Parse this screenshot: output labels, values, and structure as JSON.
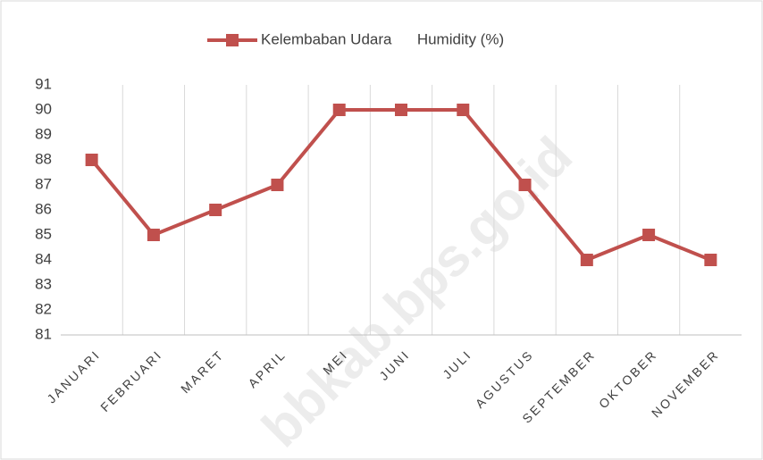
{
  "chart_data": {
    "type": "line",
    "categories": [
      "JANUARI",
      "FEBRUARI",
      "MARET",
      "APRIL",
      "MEI",
      "JUNI",
      "JULI",
      "AGUSTUS",
      "SEPTEMBER",
      "OKTOBER",
      "NOVEMBER"
    ],
    "series": [
      {
        "name": "Kelembaban Udara      Humidity (%)",
        "color": "#c0504d",
        "values": [
          88,
          85,
          86,
          87,
          90,
          90,
          90,
          87,
          84,
          85,
          84
        ]
      }
    ],
    "ylim": [
      81,
      91
    ],
    "yticks": [
      81,
      82,
      83,
      84,
      85,
      86,
      87,
      88,
      89,
      90,
      91
    ],
    "legend": "top",
    "grid": "vertical",
    "watermark": "bbkab.bps.go.id"
  }
}
